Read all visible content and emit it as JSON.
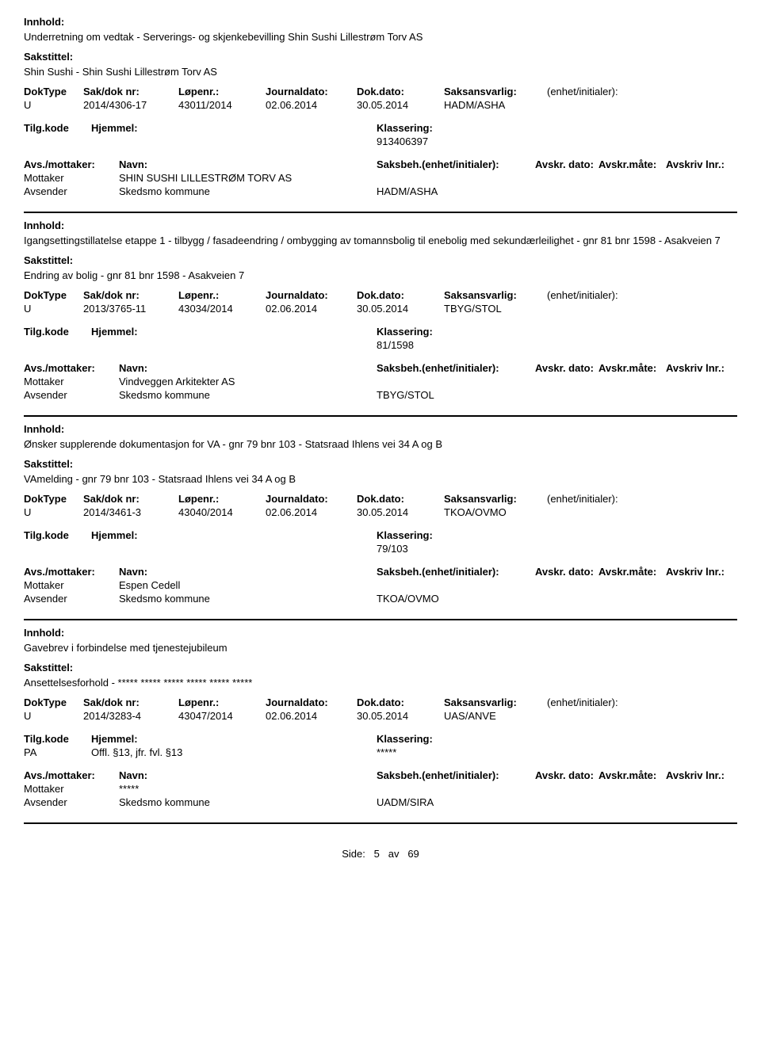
{
  "labels": {
    "innhold": "Innhold:",
    "sakstittel": "Sakstittel:",
    "doktype": "DokType",
    "sakdok": "Sak/dok nr:",
    "lopenr": "Løpenr.:",
    "journaldato": "Journaldato:",
    "dokdato": "Dok.dato:",
    "saksansvarlig": "Saksansvarlig:",
    "enhet": "(enhet/initialer):",
    "tilgkode": "Tilg.kode",
    "hjemmel": "Hjemmel:",
    "klassering": "Klassering:",
    "avsmottaker": "Avs./mottaker:",
    "navn": "Navn:",
    "saksbeh": "Saksbeh.(enhet/initialer):",
    "avskrdato": "Avskr. dato:",
    "avskrmate": "Avskr.måte:",
    "avskrivlnr": "Avskriv lnr.:",
    "mottaker": "Mottaker",
    "avsender": "Avsender"
  },
  "records": [
    {
      "innhold": "Underretning om vedtak - Serverings- og skjenkebevilling Shin Sushi Lillestrøm Torv AS",
      "sakstittel": "Shin Sushi - Shin Sushi Lillestrøm Torv AS",
      "doktype": "U",
      "sakdok": "2014/4306-17",
      "lopenr": "43011/2014",
      "journaldato": "02.06.2014",
      "dokdato": "30.05.2014",
      "saksansvarlig": "HADM/ASHA",
      "tilgkode": "",
      "hjemmel": "",
      "klassering": "913406397",
      "mottaker_navn": "SHIN SUSHI LILLESTRØM TORV AS",
      "avsender_navn": "Skedsmo kommune",
      "saksbeh_val": "HADM/ASHA"
    },
    {
      "innhold": "Igangsettingstillatelse etappe 1 - tilbygg / fasadeendring / ombygging av tomannsbolig til enebolig med sekundærleilighet - gnr 81 bnr 1598 - Asakveien 7",
      "sakstittel": "Endring av bolig - gnr 81 bnr 1598 - Asakveien 7",
      "doktype": "U",
      "sakdok": "2013/3765-11",
      "lopenr": "43034/2014",
      "journaldato": "02.06.2014",
      "dokdato": "30.05.2014",
      "saksansvarlig": "TBYG/STOL",
      "tilgkode": "",
      "hjemmel": "",
      "klassering": "81/1598",
      "mottaker_navn": "Vindveggen Arkitekter AS",
      "avsender_navn": "Skedsmo kommune",
      "saksbeh_val": "TBYG/STOL"
    },
    {
      "innhold": "Ønsker supplerende dokumentasjon for VA - gnr 79 bnr 103 - Statsraad Ihlens vei 34 A og B",
      "sakstittel": "VAmelding - gnr 79 bnr 103 - Statsraad Ihlens vei 34 A og B",
      "doktype": "U",
      "sakdok": "2014/3461-3",
      "lopenr": "43040/2014",
      "journaldato": "02.06.2014",
      "dokdato": "30.05.2014",
      "saksansvarlig": "TKOA/OVMO",
      "tilgkode": "",
      "hjemmel": "",
      "klassering": "79/103",
      "mottaker_navn": "Espen Cedell",
      "avsender_navn": "Skedsmo kommune",
      "saksbeh_val": "TKOA/OVMO"
    },
    {
      "innhold": "Gavebrev i forbindelse med tjenestejubileum",
      "sakstittel": "Ansettelsesforhold - ***** ***** ***** ***** ***** *****",
      "doktype": "U",
      "sakdok": "2014/3283-4",
      "lopenr": "43047/2014",
      "journaldato": "02.06.2014",
      "dokdato": "30.05.2014",
      "saksansvarlig": "UAS/ANVE",
      "tilgkode": "PA",
      "hjemmel": "Offl. §13, jfr. fvl. §13",
      "klassering": "*****",
      "mottaker_navn": "*****",
      "avsender_navn": "Skedsmo kommune",
      "saksbeh_val": "UADM/SIRA"
    }
  ],
  "footer": {
    "side_label": "Side:",
    "page_current": "5",
    "av_label": "av",
    "page_total": "69"
  }
}
